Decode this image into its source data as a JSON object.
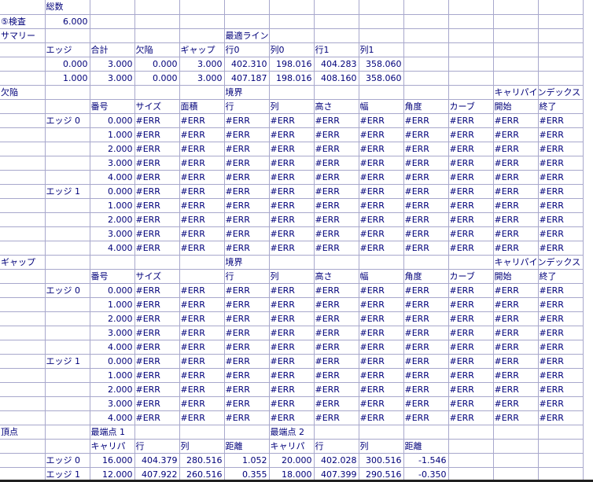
{
  "colors": {
    "text": "#00007a",
    "grid": "#a8a8cc"
  },
  "grid": {
    "rows": [
      [
        "",
        "総数",
        "",
        "",
        "",
        "",
        "",
        "",
        "",
        "",
        "",
        "",
        ""
      ],
      [
        "⑤検査",
        "6.000",
        "",
        "",
        "",
        "",
        "",
        "",
        "",
        "",
        "",
        "",
        ""
      ],
      [
        "サマリー",
        "",
        "",
        "",
        "",
        "最適ライン",
        "",
        "",
        "",
        "",
        "",
        "",
        ""
      ],
      [
        "",
        "エッジ",
        "合計",
        "欠陥",
        "ギャップ",
        "行0",
        "列0",
        "行1",
        "列1",
        "",
        "",
        "",
        ""
      ],
      [
        "",
        "0.000",
        "3.000",
        "0.000",
        "3.000",
        "402.310",
        "198.016",
        "404.283",
        "358.060",
        "",
        "",
        "",
        ""
      ],
      [
        "",
        "1.000",
        "3.000",
        "0.000",
        "3.000",
        "407.187",
        "198.016",
        "408.160",
        "358.060",
        "",
        "",
        "",
        ""
      ],
      [
        "欠陥",
        "",
        "",
        "",
        "",
        "境界",
        "",
        "",
        "",
        "",
        "",
        "キャリパインデックス",
        ""
      ],
      [
        "",
        "",
        "番号",
        "サイズ",
        "面積",
        "行",
        "列",
        "高さ",
        "幅",
        "角度",
        "カーブ",
        "開始",
        "終了"
      ],
      [
        "",
        "エッジ 0",
        "0.000",
        "#ERR",
        "#ERR",
        "#ERR",
        "#ERR",
        "#ERR",
        "#ERR",
        "#ERR",
        "#ERR",
        "#ERR",
        "#ERR"
      ],
      [
        "",
        "",
        "1.000",
        "#ERR",
        "#ERR",
        "#ERR",
        "#ERR",
        "#ERR",
        "#ERR",
        "#ERR",
        "#ERR",
        "#ERR",
        "#ERR"
      ],
      [
        "",
        "",
        "2.000",
        "#ERR",
        "#ERR",
        "#ERR",
        "#ERR",
        "#ERR",
        "#ERR",
        "#ERR",
        "#ERR",
        "#ERR",
        "#ERR"
      ],
      [
        "",
        "",
        "3.000",
        "#ERR",
        "#ERR",
        "#ERR",
        "#ERR",
        "#ERR",
        "#ERR",
        "#ERR",
        "#ERR",
        "#ERR",
        "#ERR"
      ],
      [
        "",
        "",
        "4.000",
        "#ERR",
        "#ERR",
        "#ERR",
        "#ERR",
        "#ERR",
        "#ERR",
        "#ERR",
        "#ERR",
        "#ERR",
        "#ERR"
      ],
      [
        "",
        "エッジ 1",
        "0.000",
        "#ERR",
        "#ERR",
        "#ERR",
        "#ERR",
        "#ERR",
        "#ERR",
        "#ERR",
        "#ERR",
        "#ERR",
        "#ERR"
      ],
      [
        "",
        "",
        "1.000",
        "#ERR",
        "#ERR",
        "#ERR",
        "#ERR",
        "#ERR",
        "#ERR",
        "#ERR",
        "#ERR",
        "#ERR",
        "#ERR"
      ],
      [
        "",
        "",
        "2.000",
        "#ERR",
        "#ERR",
        "#ERR",
        "#ERR",
        "#ERR",
        "#ERR",
        "#ERR",
        "#ERR",
        "#ERR",
        "#ERR"
      ],
      [
        "",
        "",
        "3.000",
        "#ERR",
        "#ERR",
        "#ERR",
        "#ERR",
        "#ERR",
        "#ERR",
        "#ERR",
        "#ERR",
        "#ERR",
        "#ERR"
      ],
      [
        "",
        "",
        "4.000",
        "#ERR",
        "#ERR",
        "#ERR",
        "#ERR",
        "#ERR",
        "#ERR",
        "#ERR",
        "#ERR",
        "#ERR",
        "#ERR"
      ],
      [
        "ギャップ",
        "",
        "",
        "",
        "",
        "境界",
        "",
        "",
        "",
        "",
        "",
        "キャリパインデックス",
        ""
      ],
      [
        "",
        "",
        "番号",
        "サイズ",
        "",
        "行",
        "列",
        "高さ",
        "幅",
        "角度",
        "カーブ",
        "開始",
        "終了"
      ],
      [
        "",
        "エッジ 0",
        "0.000",
        "#ERR",
        "#ERR",
        "#ERR",
        "#ERR",
        "#ERR",
        "#ERR",
        "#ERR",
        "#ERR",
        "#ERR",
        "#ERR"
      ],
      [
        "",
        "",
        "1.000",
        "#ERR",
        "#ERR",
        "#ERR",
        "#ERR",
        "#ERR",
        "#ERR",
        "#ERR",
        "#ERR",
        "#ERR",
        "#ERR"
      ],
      [
        "",
        "",
        "2.000",
        "#ERR",
        "#ERR",
        "#ERR",
        "#ERR",
        "#ERR",
        "#ERR",
        "#ERR",
        "#ERR",
        "#ERR",
        "#ERR"
      ],
      [
        "",
        "",
        "3.000",
        "#ERR",
        "#ERR",
        "#ERR",
        "#ERR",
        "#ERR",
        "#ERR",
        "#ERR",
        "#ERR",
        "#ERR",
        "#ERR"
      ],
      [
        "",
        "",
        "4.000",
        "#ERR",
        "#ERR",
        "#ERR",
        "#ERR",
        "#ERR",
        "#ERR",
        "#ERR",
        "#ERR",
        "#ERR",
        "#ERR"
      ],
      [
        "",
        "エッジ 1",
        "0.000",
        "#ERR",
        "#ERR",
        "#ERR",
        "#ERR",
        "#ERR",
        "#ERR",
        "#ERR",
        "#ERR",
        "#ERR",
        "#ERR"
      ],
      [
        "",
        "",
        "1.000",
        "#ERR",
        "#ERR",
        "#ERR",
        "#ERR",
        "#ERR",
        "#ERR",
        "#ERR",
        "#ERR",
        "#ERR",
        "#ERR"
      ],
      [
        "",
        "",
        "2.000",
        "#ERR",
        "#ERR",
        "#ERR",
        "#ERR",
        "#ERR",
        "#ERR",
        "#ERR",
        "#ERR",
        "#ERR",
        "#ERR"
      ],
      [
        "",
        "",
        "3.000",
        "#ERR",
        "#ERR",
        "#ERR",
        "#ERR",
        "#ERR",
        "#ERR",
        "#ERR",
        "#ERR",
        "#ERR",
        "#ERR"
      ],
      [
        "",
        "",
        "4.000",
        "#ERR",
        "#ERR",
        "#ERR",
        "#ERR",
        "#ERR",
        "#ERR",
        "#ERR",
        "#ERR",
        "#ERR",
        "#ERR"
      ],
      [
        "頂点",
        "",
        "最端点 1",
        "",
        "",
        "",
        "最端点 2",
        "",
        "",
        "",
        "",
        "",
        ""
      ],
      [
        "",
        "",
        "キャリパ",
        "行",
        "列",
        "距離",
        "キャリパ",
        "行",
        "列",
        "距離",
        "",
        "",
        ""
      ],
      [
        "",
        "エッジ 0",
        "16.000",
        "404.379",
        "280.516",
        "1.052",
        "20.000",
        "402.028",
        "300.516",
        "-1.546",
        "",
        "",
        ""
      ],
      [
        "",
        "エッジ 1",
        "12.000",
        "407.922",
        "260.516",
        "0.355",
        "18.000",
        "407.399",
        "290.516",
        "-0.350",
        "",
        "",
        ""
      ]
    ]
  }
}
